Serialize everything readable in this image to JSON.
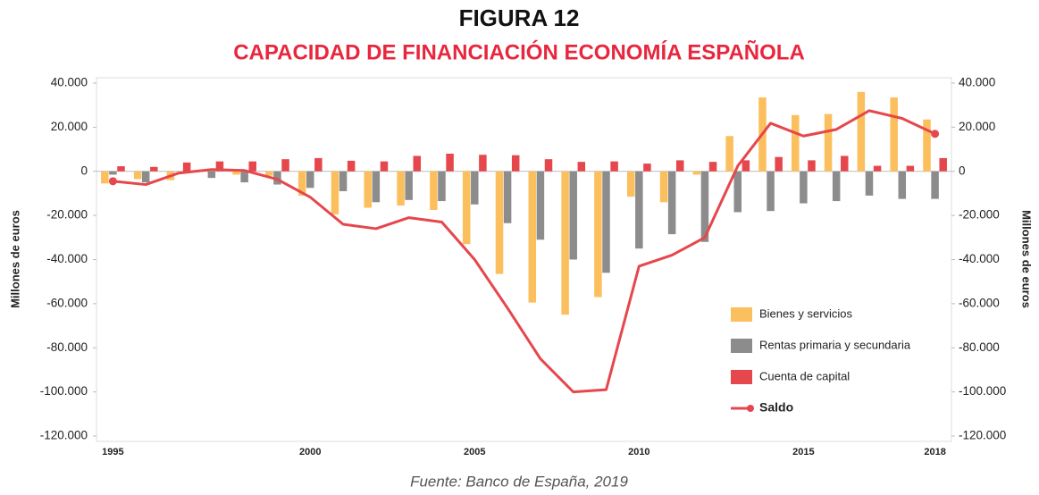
{
  "chart_data": {
    "type": "bar-line",
    "title": "FIGURA 12",
    "subtitle": "CAPACIDAD DE FINANCIACIÓN ECONOMÍA ESPAÑOLA",
    "y_label": "Millones de euros",
    "y2_label": "Millones de euros",
    "source": "Fuente: Banco de España, 2019",
    "categories": [
      "1995",
      null,
      null,
      null,
      null,
      null,
      "2000",
      null,
      null,
      null,
      null,
      "2005",
      null,
      null,
      null,
      null,
      "2010",
      null,
      null,
      null,
      null,
      "2015",
      null,
      null,
      null,
      "2018"
    ],
    "series": [
      {
        "name": "Bienes y servicios",
        "type": "bar",
        "color": "#fbbf5d",
        "values": [
          -5500,
          -3500,
          -4000,
          0,
          -1500,
          -2000,
          -11000,
          -19500,
          -16500,
          -15500,
          -17500,
          -33000,
          -46500,
          -59500,
          -65000,
          -57000,
          -11500,
          -14000,
          -1500,
          16000,
          33500,
          25500,
          26000,
          36000,
          33500,
          23500
        ]
      },
      {
        "name": "Rentas primaria y secundaria",
        "type": "bar",
        "color": "#8c8c8c",
        "values": [
          -1500,
          -5000,
          0,
          -3000,
          -5000,
          -6000,
          -7500,
          -9000,
          -14000,
          -13000,
          -13500,
          -15000,
          -23500,
          -31000,
          -40000,
          -46000,
          -35000,
          -28500,
          -32000,
          -18500,
          -18000,
          -14500,
          -13500,
          -11000,
          -12500,
          -12500
        ]
      },
      {
        "name": "Cuenta de capital",
        "type": "bar",
        "color": "#e5474c",
        "values": [
          2300,
          2000,
          4000,
          4500,
          4500,
          5500,
          6000,
          4800,
          4500,
          7000,
          8000,
          7500,
          7300,
          5500,
          4300,
          4500,
          3500,
          5000,
          4300,
          5000,
          6500,
          5000,
          7000,
          2500,
          2500,
          6000
        ]
      },
      {
        "name": "Saldo",
        "type": "line",
        "color": "#e5474c",
        "values": [
          -4500,
          -6000,
          -800,
          800,
          400,
          -3600,
          -11700,
          -24000,
          -26000,
          -21000,
          -23000,
          -40000,
          -62000,
          -85000,
          -100000,
          -99000,
          -43000,
          -38000,
          -30000,
          2400,
          21800,
          16000,
          19000,
          27500,
          24000,
          17000
        ]
      }
    ],
    "ylim": [
      -120000,
      40000
    ],
    "yticks": [
      {
        "value": 40000,
        "label": "40.000"
      },
      {
        "value": 20000,
        "label": "20.000"
      },
      0,
      {
        "value": -20000,
        "label": "-20.000"
      },
      {
        "value": -40000,
        "label": "-40.000"
      },
      {
        "value": -60000,
        "label": "-60.000"
      },
      {
        "value": -80000,
        "label": "-80.000"
      },
      {
        "value": -100000,
        "label": "-100.000"
      },
      {
        "value": -120000,
        "label": "-120.000"
      }
    ],
    "y2lim": [
      -120000,
      40000
    ],
    "y2ticks": [
      {
        "value": 40000,
        "label": "40.000"
      },
      {
        "value": 20000,
        "label": "20.000"
      },
      0,
      {
        "value": -20000,
        "label": "-20.000"
      },
      {
        "value": -40000,
        "label": "-40.000"
      },
      {
        "value": -60000,
        "label": "-60.000"
      },
      {
        "value": -80000,
        "label": "-80.000"
      },
      {
        "value": -100000,
        "label": "-100.000"
      },
      {
        "value": -120000,
        "label": "-120.000"
      }
    ],
    "grid": false,
    "legend": "bottom-right"
  }
}
